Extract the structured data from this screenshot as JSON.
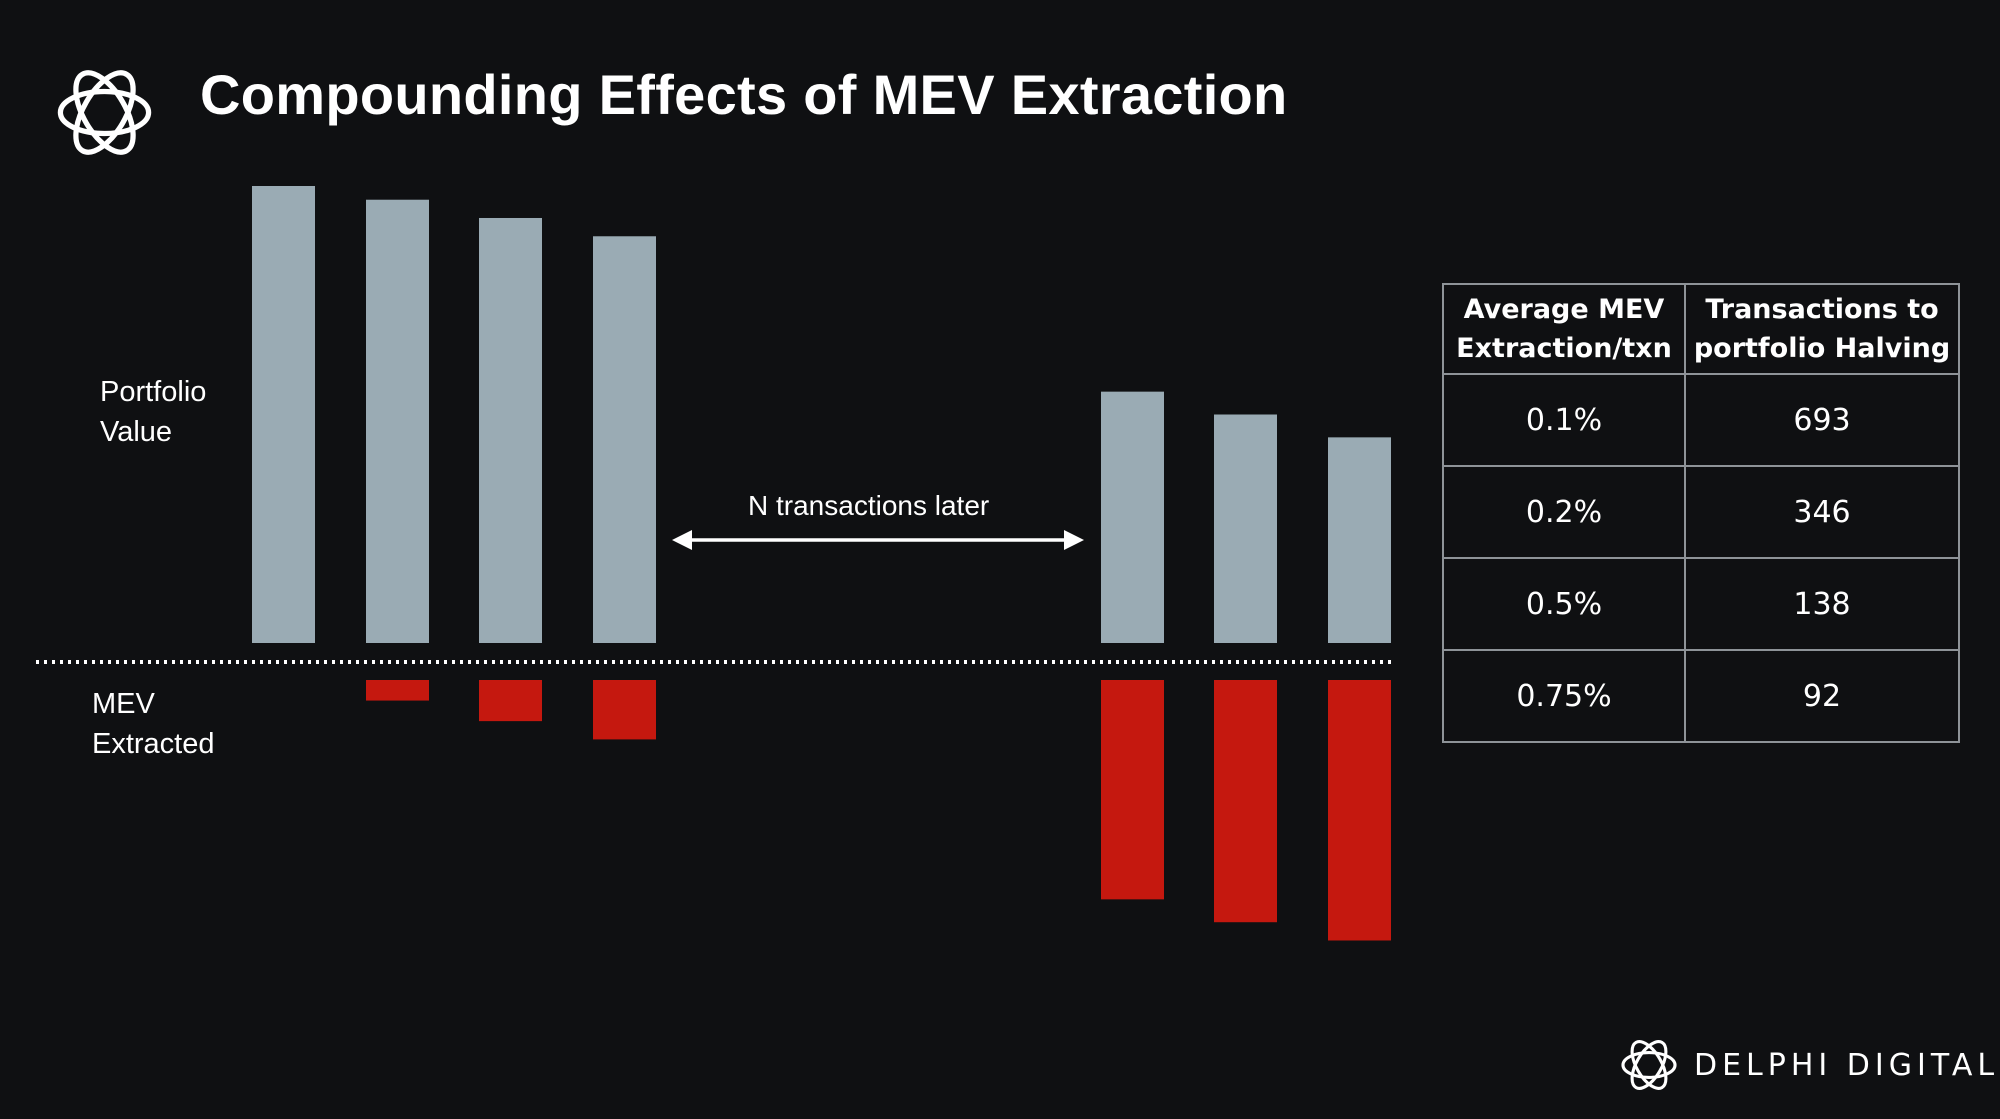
{
  "header": {
    "title": "Compounding Effects of MEV Extraction",
    "logo_icon": "delphi-knot-icon"
  },
  "chart_data": {
    "type": "bar",
    "title": "Compounding Effects of MEV Extraction",
    "series": [
      {
        "name": "Portfolio Value",
        "color": "#9aabb4",
        "values": [
          100,
          97,
          93,
          89,
          55,
          50,
          45
        ]
      },
      {
        "name": "MEV Extracted",
        "color": "#c5180f",
        "values": [
          0,
          4.5,
          9,
          13,
          48,
          53,
          57
        ]
      }
    ],
    "categories": [
      "",
      "",
      "",
      "",
      "",
      "",
      ""
    ],
    "groups": [
      [
        0,
        1,
        2,
        3
      ],
      [
        4,
        5,
        6
      ]
    ],
    "annotation": "N transactions later",
    "baseline_style": "dotted"
  },
  "labels": {
    "portfolio": "Portfolio\nValue",
    "mev": "MEV\nExtracted"
  },
  "table": {
    "headers": [
      "Average MEV\nExtraction/txn",
      "Transactions to\nportfolio Halving"
    ],
    "rows": [
      [
        "0.1%",
        "693"
      ],
      [
        "0.2%",
        "346"
      ],
      [
        "0.5%",
        "138"
      ],
      [
        "0.75%",
        "92"
      ]
    ]
  },
  "brand": {
    "name": "DELPHI DIGITAL",
    "icon": "delphi-knot-icon"
  },
  "colors": {
    "background": "#0f1012",
    "portfolio": "#9aabb4",
    "mev": "#c5180f",
    "text": "#ffffff"
  }
}
